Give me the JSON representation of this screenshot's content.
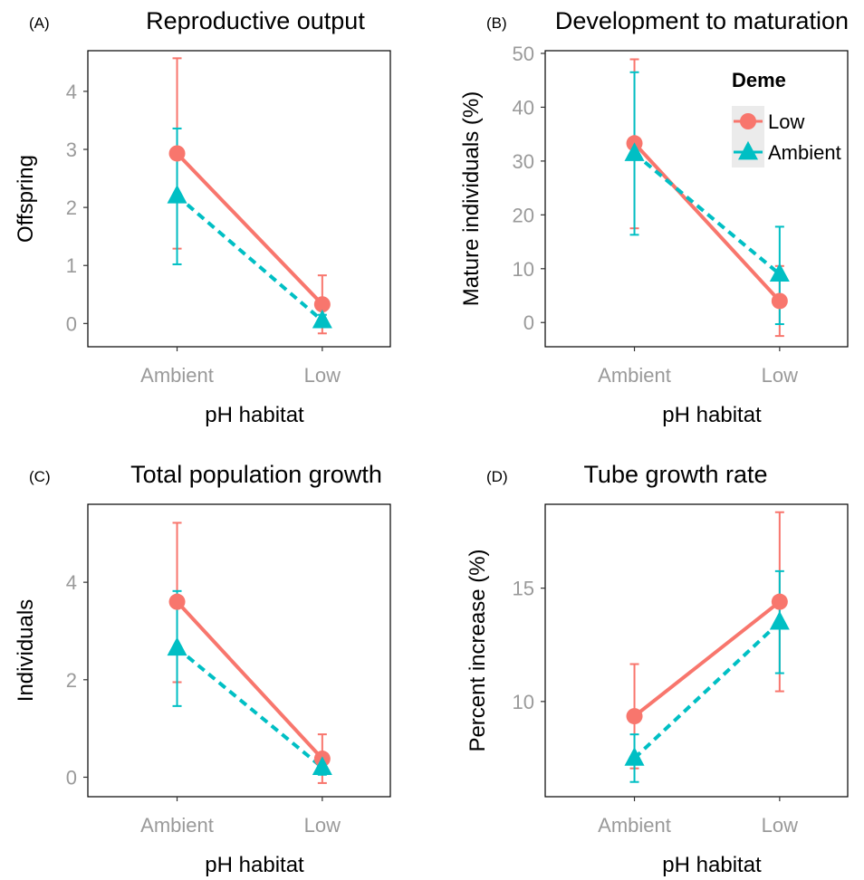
{
  "colors": {
    "low": "#f8766d",
    "ambient": "#00bfc4"
  },
  "legend": {
    "title": "Deme",
    "entries": [
      {
        "label": "Low",
        "key": "low"
      },
      {
        "label": "Ambient",
        "key": "ambient"
      }
    ]
  },
  "chart_data": [
    {
      "type": "line",
      "panel_label": "(A)",
      "title": "Reproductive output",
      "xlabel": "pH habitat",
      "ylabel": "Offspring",
      "categories": [
        "Ambient",
        "Low"
      ],
      "ylim": [
        -0.4,
        4.7
      ],
      "yticks": [
        "0",
        "1",
        "2",
        "3",
        "4"
      ],
      "series": [
        {
          "name": "Low",
          "key": "low",
          "values": [
            2.93,
            0.33
          ],
          "err_low": [
            1.29,
            -0.17
          ],
          "err_high": [
            4.57,
            0.83
          ]
        },
        {
          "name": "Ambient",
          "key": "ambient",
          "values": [
            2.2,
            0.05
          ],
          "err_low": [
            1.02,
            -0.05
          ],
          "err_high": [
            3.36,
            0.15
          ]
        }
      ]
    },
    {
      "type": "line",
      "panel_label": "(B)",
      "title": "Development to maturation",
      "xlabel": "pH habitat",
      "ylabel": "Mature individuals (%)",
      "categories": [
        "Ambient",
        "Low"
      ],
      "ylim": [
        -4.5,
        50.5
      ],
      "yticks": [
        "0",
        "10",
        "20",
        "30",
        "40",
        "50"
      ],
      "legend_here": true,
      "series": [
        {
          "name": "Low",
          "key": "low",
          "values": [
            33.3,
            4.0
          ],
          "err_low": [
            17.5,
            -2.5
          ],
          "err_high": [
            48.9,
            10.5
          ]
        },
        {
          "name": "Ambient",
          "key": "ambient",
          "values": [
            31.4,
            9.0
          ],
          "err_low": [
            16.3,
            -0.3
          ],
          "err_high": [
            46.5,
            17.8
          ]
        }
      ]
    },
    {
      "type": "line",
      "panel_label": "(C)",
      "title": "Total population growth",
      "xlabel": "pH habitat",
      "ylabel": "Individuals",
      "categories": [
        "Ambient",
        "Low"
      ],
      "ylim": [
        -0.4,
        5.6
      ],
      "yticks": [
        "0",
        "2",
        "4"
      ],
      "series": [
        {
          "name": "Low",
          "key": "low",
          "values": [
            3.6,
            0.38
          ],
          "err_low": [
            1.95,
            -0.12
          ],
          "err_high": [
            5.22,
            0.88
          ]
        },
        {
          "name": "Ambient",
          "key": "ambient",
          "values": [
            2.65,
            0.2
          ],
          "err_low": [
            1.46,
            0.05
          ],
          "err_high": [
            3.82,
            0.35
          ]
        }
      ]
    },
    {
      "type": "line",
      "panel_label": "(D)",
      "title": "Tube growth rate",
      "xlabel": "pH habitat",
      "ylabel": "Percent increase (%)",
      "categories": [
        "Ambient",
        "Low"
      ],
      "ylim": [
        5.8,
        18.7
      ],
      "yticks": [
        "10",
        "15"
      ],
      "series": [
        {
          "name": "Low",
          "key": "low",
          "values": [
            9.35,
            14.4
          ],
          "err_low": [
            7.05,
            10.45
          ],
          "err_high": [
            11.65,
            18.35
          ]
        },
        {
          "name": "Ambient",
          "key": "ambient",
          "values": [
            7.5,
            13.5
          ],
          "err_low": [
            6.45,
            11.25
          ],
          "err_high": [
            8.55,
            15.75
          ]
        }
      ]
    }
  ]
}
